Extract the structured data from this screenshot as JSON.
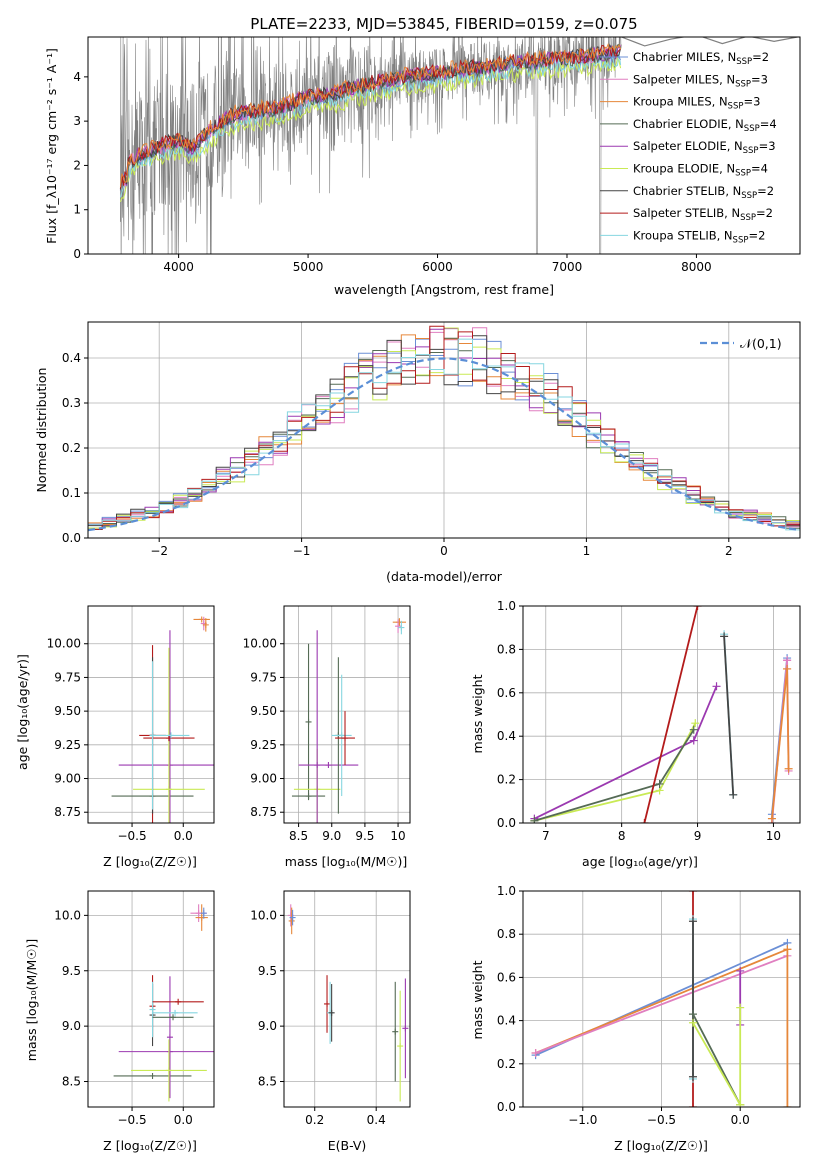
{
  "figure": {
    "title": "PLATE=2233, MJD=53845, FIBERID=0159, z=0.075"
  },
  "colors": {
    "cm": "#6b8fd6",
    "sm": "#e07fc0",
    "km": "#e6873a",
    "ce": "#556b55",
    "se": "#9b39b0",
    "ke": "#c9ea55",
    "cs": "#444444",
    "ss": "#b31b1b",
    "ks": "#86d6e0",
    "spec": "#808080",
    "gauss": "#5b8fd6"
  },
  "chart_data": [
    {
      "id": "spectrum",
      "type": "line",
      "xlabel": "wavelength [Angstrom, rest frame]",
      "ylabel": "Flux [f_λ10⁻¹⁷ erg cm⁻² s⁻¹ A⁻¹]",
      "xlim": [
        3300,
        8800
      ],
      "ylim": [
        0,
        4.9
      ],
      "xticks": [
        4000,
        5000,
        6000,
        7000,
        8000
      ],
      "yticks": [
        0,
        1,
        2,
        3,
        4
      ],
      "model_x": [
        3550,
        3700,
        3850,
        4000,
        4100,
        4250,
        4400,
        4600,
        4800,
        5000,
        5200,
        5400,
        5600,
        5800,
        6000,
        6200,
        6400,
        6600,
        6800,
        7000,
        7200,
        7400,
        7600,
        7800,
        8000,
        8200,
        8400
      ],
      "model_y": [
        1.9,
        2.2,
        2.4,
        2.55,
        2.35,
        2.8,
        3.1,
        3.2,
        3.3,
        3.5,
        3.6,
        3.75,
        3.9,
        4.0,
        4.05,
        4.15,
        4.2,
        4.3,
        4.35,
        4.4,
        4.45,
        4.55,
        4.6,
        4.6,
        4.65,
        4.6,
        4.55
      ],
      "noise_amplitude": 1.6,
      "data_range": [
        3550,
        7420
      ],
      "grey_extension_x": [
        7420,
        7600,
        7800,
        8000,
        8200,
        8400,
        8600,
        8780
      ],
      "grey_extension_y": [
        4.9,
        4.7,
        4.85,
        4.95,
        4.75,
        4.92,
        4.8,
        4.9
      ],
      "legend_position": "upper-right",
      "legend": [
        {
          "base": "Chabrier MILES, N",
          "sub": "SSP",
          "rest": "=2",
          "color": "cm"
        },
        {
          "base": "Salpeter MILES, N",
          "sub": "SSP",
          "rest": "=3",
          "color": "sm"
        },
        {
          "base": "Kroupa MILES, N",
          "sub": "SSP",
          "rest": "=3",
          "color": "km"
        },
        {
          "base": "Chabrier ELODIE, N",
          "sub": "SSP",
          "rest": "=4",
          "color": "ce"
        },
        {
          "base": "Salpeter ELODIE, N",
          "sub": "SSP",
          "rest": "=3",
          "color": "se"
        },
        {
          "base": "Kroupa ELODIE, N",
          "sub": "SSP",
          "rest": "=4",
          "color": "ke"
        },
        {
          "base": "Chabrier STELIB, N",
          "sub": "SSP",
          "rest": "=2",
          "color": "cs"
        },
        {
          "base": "Salpeter STELIB, N",
          "sub": "SSP",
          "rest": "=2",
          "color": "ss"
        },
        {
          "base": "Kroupa STELIB, N",
          "sub": "SSP",
          "rest": "=2",
          "color": "ks"
        }
      ]
    },
    {
      "id": "residuals",
      "type": "step",
      "xlabel": "(data-model)/error",
      "ylabel": "Normed distribution",
      "xlim": [
        -2.5,
        2.5
      ],
      "ylim": [
        0,
        0.48
      ],
      "xticks": [
        -2,
        -1,
        0,
        1,
        2
      ],
      "yticks": [
        0.0,
        0.1,
        0.2,
        0.3,
        0.4
      ],
      "bin_width": 0.1,
      "legend": "𝒩(0,1)",
      "legend_position": "upper-right"
    },
    {
      "id": "age_vs_Z",
      "type": "errorbar",
      "xlabel": "Z [log₁₀(Z/Z☉)]",
      "ylabel": "age  [log₁₀(age/yr)]",
      "xlim": [
        -0.93,
        0.3
      ],
      "ylim": [
        8.67,
        10.28
      ],
      "xticks": [
        -0.5,
        0.0
      ],
      "yticks": [
        8.75,
        9.0,
        9.25,
        9.5,
        9.75,
        10.0
      ],
      "points": [
        {
          "x": -0.3,
          "y": 9.32,
          "xerr": 0.13,
          "yerr": 0.67,
          "c": "ss"
        },
        {
          "x": -0.3,
          "y": 8.87,
          "xerr": 0.4,
          "yerr": 0.0,
          "c": "ce"
        },
        {
          "x": -0.13,
          "y": 9.1,
          "xerr": 0.5,
          "yerr": 1.0,
          "c": "se"
        },
        {
          "x": -0.14,
          "y": 8.92,
          "xerr": 0.35,
          "yerr": 1.05,
          "c": "ke"
        },
        {
          "x": -0.3,
          "y": 9.32,
          "xerr": 0.0,
          "yerr": 0.58,
          "c": "cs"
        },
        {
          "x": -0.14,
          "y": 9.3,
          "xerr": 0.25,
          "yerr": 0.0,
          "c": "ss"
        },
        {
          "x": -0.12,
          "y": 9.32,
          "xerr": 0.18,
          "yerr": 0.0,
          "c": "ks"
        },
        {
          "x": -0.3,
          "y": 9.32,
          "xerr": 0.0,
          "yerr": 0.55,
          "c": "ks"
        },
        {
          "x": 0.18,
          "y": 10.18,
          "xerr": 0.08,
          "yerr": 0.0,
          "c": "km"
        },
        {
          "x": 0.2,
          "y": 10.15,
          "xerr": 0.0,
          "yerr": 0.05,
          "c": "sm"
        },
        {
          "x": 0.22,
          "y": 10.14,
          "xerr": 0.0,
          "yerr": 0.05,
          "c": "km"
        }
      ]
    },
    {
      "id": "age_vs_mass",
      "type": "errorbar",
      "xlabel": "mass [log₁₀(M/M☉)]",
      "ylabel": "",
      "xlim": [
        8.28,
        10.18
      ],
      "ylim": [
        8.67,
        10.28
      ],
      "xticks": [
        8.5,
        9.0,
        9.5,
        10.0
      ],
      "yticks": [
        8.75,
        9.0,
        9.25,
        9.5,
        9.75,
        10.0
      ],
      "points": [
        {
          "x": 8.65,
          "y": 8.87,
          "xerr": 0.25,
          "yerr": 0.0,
          "c": "ce"
        },
        {
          "x": 8.65,
          "y": 9.42,
          "xerr": 0.0,
          "yerr": 0.58,
          "c": "ce"
        },
        {
          "x": 8.78,
          "y": 8.92,
          "xerr": 0.35,
          "yerr": 0.3,
          "c": "ke"
        },
        {
          "x": 8.78,
          "y": 9.1,
          "xerr": 0.0,
          "yerr": 1.0,
          "c": "se"
        },
        {
          "x": 8.95,
          "y": 9.1,
          "xerr": 0.45,
          "yerr": 0.0,
          "c": "se"
        },
        {
          "x": 9.1,
          "y": 9.32,
          "xerr": 0.0,
          "yerr": 0.58,
          "c": "ce"
        },
        {
          "x": 9.15,
          "y": 9.32,
          "xerr": 0.15,
          "yerr": 0.45,
          "c": "ks"
        },
        {
          "x": 9.2,
          "y": 9.3,
          "xerr": 0.15,
          "yerr": 0.2,
          "c": "ss"
        },
        {
          "x": 10.02,
          "y": 10.16,
          "xerr": 0.1,
          "yerr": 0.03,
          "c": "km"
        },
        {
          "x": 10.0,
          "y": 10.13,
          "xerr": 0.0,
          "yerr": 0.05,
          "c": "sm"
        },
        {
          "x": 10.05,
          "y": 10.12,
          "xerr": 0.0,
          "yerr": 0.05,
          "c": "ks"
        }
      ]
    },
    {
      "id": "weight_vs_age",
      "type": "line",
      "xlabel": "age  [log₁₀(age/yr)]",
      "ylabel": "mass weight",
      "xlim": [
        6.7,
        10.35
      ],
      "ylim": [
        0,
        1.0
      ],
      "xticks": [
        7,
        8,
        9,
        10
      ],
      "yticks": [
        0.0,
        0.2,
        0.4,
        0.6,
        0.8,
        1.0
      ],
      "series": [
        {
          "c": "se",
          "x": [
            6.85,
            8.95,
            9.25
          ],
          "y": [
            0.02,
            0.38,
            0.63
          ]
        },
        {
          "c": "ke",
          "x": [
            6.85,
            8.5,
            8.97
          ],
          "y": [
            0.01,
            0.15,
            0.46
          ]
        },
        {
          "c": "ce",
          "x": [
            6.85,
            8.5,
            8.95
          ],
          "y": [
            0.01,
            0.18,
            0.43
          ]
        },
        {
          "c": "ss",
          "x": [
            8.3,
            9.0
          ],
          "y": [
            0.0,
            1.0
          ]
        },
        {
          "c": "ks",
          "x": [
            9.35,
            9.47
          ],
          "y": [
            0.87,
            0.13
          ]
        },
        {
          "c": "cs",
          "x": [
            9.35,
            9.47
          ],
          "y": [
            0.86,
            0.13
          ]
        },
        {
          "c": "cm",
          "x": [
            9.98,
            10.18
          ],
          "y": [
            0.04,
            0.76
          ]
        },
        {
          "c": "sm",
          "x": [
            9.98,
            10.18
          ],
          "y": [
            0.0,
            0.75
          ]
        },
        {
          "c": "km",
          "x": [
            9.98,
            10.18
          ],
          "y": [
            0.02,
            0.71
          ]
        },
        {
          "c": "sm",
          "x": [
            10.18,
            10.2
          ],
          "y": [
            0.75,
            0.24
          ]
        },
        {
          "c": "km",
          "x": [
            10.18,
            10.2
          ],
          "y": [
            0.71,
            0.25
          ]
        }
      ]
    },
    {
      "id": "mass_vs_Z",
      "type": "errorbar",
      "xlabel": "Z [log₁₀(Z/Z☉)]",
      "ylabel": "mass [log₁₀(M/M☉)]",
      "xlim": [
        -0.93,
        0.3
      ],
      "ylim": [
        8.27,
        10.22
      ],
      "xticks": [
        -0.5,
        0.0
      ],
      "yticks": [
        8.5,
        9.0,
        9.5,
        10.0
      ],
      "points": [
        {
          "x": -0.3,
          "y": 9.18,
          "xerr": 0.0,
          "yerr": 0.28,
          "c": "ss"
        },
        {
          "x": -0.3,
          "y": 9.1,
          "xerr": 0.0,
          "yerr": 0.28,
          "c": "cs"
        },
        {
          "x": -0.3,
          "y": 8.55,
          "xerr": 0.38,
          "yerr": 0.0,
          "c": "ce"
        },
        {
          "x": -0.3,
          "y": 9.15,
          "xerr": 0.0,
          "yerr": 0.25,
          "c": "ks"
        },
        {
          "x": -0.13,
          "y": 8.77,
          "xerr": 0.5,
          "yerr": 0.0,
          "c": "se"
        },
        {
          "x": -0.13,
          "y": 8.9,
          "xerr": 0.0,
          "yerr": 0.55,
          "c": "se"
        },
        {
          "x": -0.14,
          "y": 8.6,
          "xerr": 0.37,
          "yerr": 0.28,
          "c": "ke"
        },
        {
          "x": -0.05,
          "y": 9.22,
          "xerr": 0.25,
          "yerr": 0.0,
          "c": "ss"
        },
        {
          "x": -0.08,
          "y": 9.12,
          "xerr": 0.22,
          "yerr": 0.0,
          "c": "ks"
        },
        {
          "x": -0.1,
          "y": 9.08,
          "xerr": 0.2,
          "yerr": 0.0,
          "c": "ce"
        },
        {
          "x": 0.15,
          "y": 10.02,
          "xerr": 0.08,
          "yerr": 0.08,
          "c": "sm"
        },
        {
          "x": 0.18,
          "y": 9.98,
          "xerr": 0.06,
          "yerr": 0.12,
          "c": "km"
        },
        {
          "x": 0.2,
          "y": 10.02,
          "xerr": 0.0,
          "yerr": 0.05,
          "c": "cm"
        }
      ]
    },
    {
      "id": "mass_vs_EBV",
      "type": "errorbar",
      "xlabel": "E(B-V)",
      "ylabel": "",
      "xlim": [
        0.1,
        0.51
      ],
      "ylim": [
        8.27,
        10.22
      ],
      "xticks": [
        0.2,
        0.4
      ],
      "yticks": [
        8.5,
        9.0,
        9.5,
        10.0
      ],
      "points": [
        {
          "x": 0.122,
          "y": 10.0,
          "xerr": 0.0,
          "yerr": 0.1,
          "c": "sm"
        },
        {
          "x": 0.125,
          "y": 9.95,
          "xerr": 0.0,
          "yerr": 0.12,
          "c": "km"
        },
        {
          "x": 0.128,
          "y": 9.98,
          "xerr": 0.0,
          "yerr": 0.07,
          "c": "cm"
        },
        {
          "x": 0.24,
          "y": 9.2,
          "xerr": 0.0,
          "yerr": 0.26,
          "c": "ss"
        },
        {
          "x": 0.25,
          "y": 9.12,
          "xerr": 0.0,
          "yerr": 0.28,
          "c": "ks"
        },
        {
          "x": 0.255,
          "y": 9.12,
          "xerr": 0.0,
          "yerr": 0.26,
          "c": "cs"
        },
        {
          "x": 0.462,
          "y": 8.95,
          "xerr": 0.0,
          "yerr": 0.45,
          "c": "ce"
        },
        {
          "x": 0.478,
          "y": 8.82,
          "xerr": 0.0,
          "yerr": 0.5,
          "c": "ke"
        },
        {
          "x": 0.495,
          "y": 8.98,
          "xerr": 0.0,
          "yerr": 0.45,
          "c": "se"
        }
      ]
    },
    {
      "id": "weight_vs_Z",
      "type": "line",
      "xlabel": "Z [log₁₀(Z/Z☉)]",
      "ylabel": "mass weight",
      "xlim": [
        -1.38,
        0.38
      ],
      "ylim": [
        0,
        1.0
      ],
      "xticks": [
        -1.0,
        -0.5,
        0.0
      ],
      "yticks": [
        0.0,
        0.2,
        0.4,
        0.6,
        0.8,
        1.0
      ],
      "series": [
        {
          "c": "cm",
          "x": [
            -1.3,
            0.3
          ],
          "y": [
            0.24,
            0.76
          ]
        },
        {
          "c": "km",
          "x": [
            -1.3,
            0.3
          ],
          "y": [
            0.25,
            0.73
          ]
        },
        {
          "c": "sm",
          "x": [
            -1.3,
            0.3
          ],
          "y": [
            0.25,
            0.7
          ]
        },
        {
          "c": "ss",
          "x": [
            -0.3,
            -0.3
          ],
          "y": [
            0.0,
            1.0
          ]
        },
        {
          "c": "ks",
          "x": [
            -0.3,
            -0.3
          ],
          "y": [
            0.13,
            0.87
          ]
        },
        {
          "c": "cs",
          "x": [
            -0.3,
            -0.3
          ],
          "y": [
            0.14,
            0.86
          ]
        },
        {
          "c": "ce",
          "x": [
            -0.3,
            0.0
          ],
          "y": [
            0.43,
            0.01
          ]
        },
        {
          "c": "ke",
          "x": [
            -0.3,
            0.0
          ],
          "y": [
            0.39,
            0.01
          ]
        },
        {
          "c": "se",
          "x": [
            0.0,
            0.0
          ],
          "y": [
            0.38,
            0.63
          ]
        },
        {
          "c": "ke",
          "x": [
            0.0,
            0.0
          ],
          "y": [
            0.01,
            0.46
          ]
        },
        {
          "c": "km",
          "x": [
            0.3,
            0.3
          ],
          "y": [
            0.0,
            0.73
          ]
        }
      ]
    }
  ]
}
